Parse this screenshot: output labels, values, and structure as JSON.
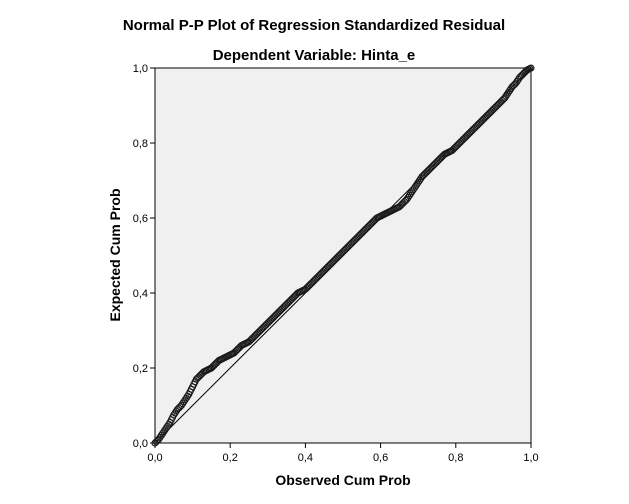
{
  "chart_data": {
    "type": "scatter",
    "title": "Normal P-P Plot of Regression Standardized Residual",
    "subtitle": "Dependent Variable: Hinta_e",
    "xlabel": "Observed Cum Prob",
    "ylabel": "Expected Cum Prob",
    "xlim": [
      0,
      1
    ],
    "ylim": [
      0,
      1
    ],
    "x_ticks": [
      "0,0",
      "0,2",
      "0,4",
      "0,6",
      "0,8",
      "1,0"
    ],
    "y_ticks": [
      "0,0",
      "0,2",
      "0,4",
      "0,6",
      "0,8",
      "1,0"
    ],
    "grid": false,
    "reference_line": {
      "from": [
        0,
        0
      ],
      "to": [
        1,
        1
      ]
    },
    "colors": {
      "plot_background": "#f0f0f0",
      "marker": "#1a1a1a",
      "line": "#000000"
    },
    "points": {
      "x": [
        0.0,
        0.01,
        0.02,
        0.03,
        0.04,
        0.05,
        0.06,
        0.07,
        0.08,
        0.09,
        0.1,
        0.11,
        0.12,
        0.13,
        0.14,
        0.15,
        0.16,
        0.17,
        0.18,
        0.19,
        0.2,
        0.21,
        0.22,
        0.23,
        0.24,
        0.25,
        0.26,
        0.27,
        0.28,
        0.29,
        0.3,
        0.31,
        0.32,
        0.33,
        0.34,
        0.35,
        0.36,
        0.37,
        0.38,
        0.39,
        0.4,
        0.41,
        0.42,
        0.43,
        0.44,
        0.45,
        0.46,
        0.47,
        0.48,
        0.49,
        0.5,
        0.51,
        0.52,
        0.53,
        0.54,
        0.55,
        0.56,
        0.57,
        0.58,
        0.59,
        0.6,
        0.61,
        0.62,
        0.63,
        0.64,
        0.65,
        0.66,
        0.67,
        0.68,
        0.69,
        0.7,
        0.71,
        0.72,
        0.73,
        0.74,
        0.75,
        0.76,
        0.77,
        0.78,
        0.79,
        0.8,
        0.81,
        0.82,
        0.83,
        0.84,
        0.85,
        0.86,
        0.87,
        0.88,
        0.89,
        0.9,
        0.91,
        0.92,
        0.93,
        0.94,
        0.95,
        0.96,
        0.97,
        0.98,
        0.99,
        1.0
      ],
      "y": [
        0.0,
        0.01,
        0.025,
        0.04,
        0.055,
        0.075,
        0.09,
        0.1,
        0.115,
        0.13,
        0.15,
        0.17,
        0.18,
        0.19,
        0.195,
        0.2,
        0.21,
        0.22,
        0.225,
        0.23,
        0.235,
        0.24,
        0.25,
        0.26,
        0.265,
        0.27,
        0.28,
        0.29,
        0.3,
        0.31,
        0.32,
        0.33,
        0.34,
        0.35,
        0.36,
        0.37,
        0.38,
        0.39,
        0.4,
        0.405,
        0.41,
        0.42,
        0.43,
        0.44,
        0.45,
        0.46,
        0.47,
        0.48,
        0.49,
        0.5,
        0.51,
        0.52,
        0.53,
        0.54,
        0.55,
        0.56,
        0.57,
        0.58,
        0.59,
        0.6,
        0.605,
        0.61,
        0.615,
        0.62,
        0.625,
        0.63,
        0.64,
        0.65,
        0.665,
        0.68,
        0.695,
        0.71,
        0.72,
        0.73,
        0.74,
        0.75,
        0.76,
        0.77,
        0.775,
        0.78,
        0.79,
        0.8,
        0.81,
        0.82,
        0.83,
        0.84,
        0.85,
        0.86,
        0.87,
        0.88,
        0.89,
        0.9,
        0.91,
        0.92,
        0.935,
        0.95,
        0.96,
        0.975,
        0.985,
        0.995,
        1.0
      ]
    }
  }
}
